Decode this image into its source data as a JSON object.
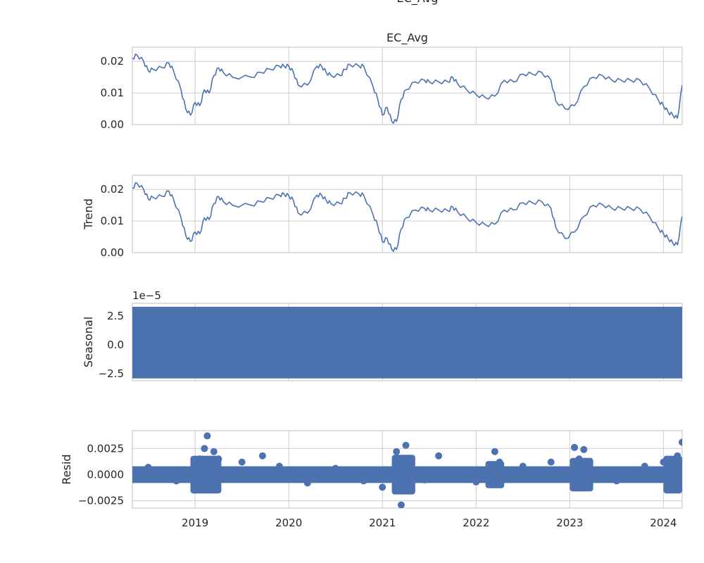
{
  "colors": {
    "series": "#4c72b0",
    "grid": "#cccccc",
    "text": "#262626"
  },
  "chart_data": [
    {
      "type": "line",
      "title": "EC_Avg",
      "suptitle": "EC_Avg",
      "ylabel": "",
      "xlim": [
        2018.33,
        2024.2
      ],
      "ylim": [
        0.0,
        0.0245
      ],
      "yticks": [
        0.0,
        0.01,
        0.02
      ],
      "ytick_labels": [
        "0.00",
        "0.01",
        "0.02"
      ],
      "x": [
        2018.33,
        2018.38,
        2018.45,
        2018.5,
        2018.55,
        2018.65,
        2018.72,
        2018.77,
        2018.85,
        2018.9,
        2018.95,
        2019.0,
        2019.05,
        2019.1,
        2019.15,
        2019.2,
        2019.25,
        2019.3,
        2019.4,
        2019.6,
        2019.7,
        2019.8,
        2019.9,
        2019.95,
        2020.0,
        2020.05,
        2020.1,
        2020.2,
        2020.3,
        2020.35,
        2020.4,
        2020.45,
        2020.55,
        2020.6,
        2020.65,
        2020.75,
        2020.8,
        2020.9,
        2020.95,
        2021.0,
        2021.05,
        2021.1,
        2021.15,
        2021.2,
        2021.25,
        2021.35,
        2021.45,
        2021.5,
        2021.6,
        2021.7,
        2021.75,
        2021.8,
        2021.9,
        2022.0,
        2022.1,
        2022.2,
        2022.3,
        2022.4,
        2022.5,
        2022.6,
        2022.7,
        2022.8,
        2022.85,
        2022.95,
        2023.05,
        2023.15,
        2023.25,
        2023.35,
        2023.45,
        2023.55,
        2023.65,
        2023.75,
        2023.85,
        2023.95,
        2024.0,
        2024.05,
        2024.1,
        2024.15,
        2024.2
      ],
      "y": [
        0.021,
        0.022,
        0.02,
        0.017,
        0.0175,
        0.018,
        0.0195,
        0.017,
        0.011,
        0.005,
        0.003,
        0.007,
        0.006,
        0.011,
        0.01,
        0.0155,
        0.018,
        0.0165,
        0.015,
        0.015,
        0.0165,
        0.0175,
        0.0185,
        0.0185,
        0.0185,
        0.0165,
        0.0125,
        0.0125,
        0.0185,
        0.0185,
        0.0165,
        0.0155,
        0.0155,
        0.0175,
        0.019,
        0.0185,
        0.0185,
        0.012,
        0.008,
        0.003,
        0.0055,
        0.001,
        0.001,
        0.008,
        0.011,
        0.0135,
        0.014,
        0.0135,
        0.0135,
        0.0135,
        0.015,
        0.013,
        0.011,
        0.0095,
        0.0085,
        0.009,
        0.014,
        0.0135,
        0.016,
        0.016,
        0.0165,
        0.014,
        0.0075,
        0.005,
        0.006,
        0.012,
        0.015,
        0.0155,
        0.014,
        0.014,
        0.014,
        0.014,
        0.0115,
        0.0075,
        0.006,
        0.004,
        0.003,
        0.002,
        0.0125
      ]
    },
    {
      "type": "line",
      "title": "",
      "ylabel": "Trend",
      "xlim": [
        2018.33,
        2024.2
      ],
      "ylim": [
        0.0,
        0.0245
      ],
      "yticks": [
        0.0,
        0.01,
        0.02
      ],
      "ytick_labels": [
        "0.00",
        "0.01",
        "0.02"
      ],
      "x": [
        2018.33,
        2018.38,
        2018.45,
        2018.5,
        2018.55,
        2018.65,
        2018.72,
        2018.77,
        2018.85,
        2018.9,
        2018.95,
        2019.0,
        2019.05,
        2019.1,
        2019.15,
        2019.2,
        2019.25,
        2019.3,
        2019.4,
        2019.6,
        2019.7,
        2019.8,
        2019.9,
        2019.95,
        2020.0,
        2020.05,
        2020.1,
        2020.2,
        2020.3,
        2020.35,
        2020.4,
        2020.45,
        2020.55,
        2020.6,
        2020.65,
        2020.75,
        2020.8,
        2020.9,
        2020.95,
        2021.0,
        2021.05,
        2021.1,
        2021.15,
        2021.2,
        2021.25,
        2021.35,
        2021.45,
        2021.5,
        2021.6,
        2021.7,
        2021.75,
        2021.8,
        2021.9,
        2022.0,
        2022.1,
        2022.2,
        2022.3,
        2022.4,
        2022.5,
        2022.6,
        2022.7,
        2022.8,
        2022.85,
        2022.95,
        2023.05,
        2023.15,
        2023.25,
        2023.35,
        2023.45,
        2023.55,
        2023.65,
        2023.75,
        2023.85,
        2023.95,
        2024.0,
        2024.05,
        2024.1,
        2024.15,
        2024.2
      ],
      "y": [
        0.0205,
        0.022,
        0.02,
        0.017,
        0.0175,
        0.0178,
        0.0195,
        0.0168,
        0.011,
        0.0055,
        0.0035,
        0.0065,
        0.006,
        0.011,
        0.0105,
        0.0155,
        0.0178,
        0.0162,
        0.015,
        0.015,
        0.0162,
        0.0172,
        0.0182,
        0.0185,
        0.018,
        0.0165,
        0.0125,
        0.0125,
        0.0182,
        0.0182,
        0.0165,
        0.0155,
        0.0155,
        0.0172,
        0.019,
        0.0185,
        0.0182,
        0.012,
        0.0085,
        0.0035,
        0.0045,
        0.001,
        0.001,
        0.0075,
        0.011,
        0.0135,
        0.014,
        0.0135,
        0.0135,
        0.0132,
        0.0145,
        0.013,
        0.011,
        0.0095,
        0.0088,
        0.009,
        0.0135,
        0.0135,
        0.0158,
        0.0158,
        0.0162,
        0.014,
        0.008,
        0.0045,
        0.0065,
        0.0115,
        0.015,
        0.0152,
        0.014,
        0.014,
        0.014,
        0.0138,
        0.0115,
        0.0075,
        0.006,
        0.0045,
        0.003,
        0.0025,
        0.0115
      ]
    },
    {
      "type": "area",
      "title": "",
      "ylabel": "Seasonal",
      "offset_label": "1e−5",
      "xlim": [
        2018.33,
        2024.2
      ],
      "ylim": [
        -3.1,
        3.6
      ],
      "yticks": [
        -2.5,
        0.0,
        2.5
      ],
      "ytick_labels": [
        "−2.5",
        "0.0",
        "2.5"
      ],
      "band": [
        -2.9,
        3.3
      ]
    },
    {
      "type": "scatter",
      "title": "",
      "ylabel": "Resid",
      "xlim": [
        2018.33,
        2024.2
      ],
      "ylim": [
        -0.0032,
        0.0042
      ],
      "yticks": [
        -0.0025,
        0.0,
        0.0025
      ],
      "ytick_labels": [
        "−0.0025",
        "0.0000",
        "0.0025"
      ],
      "x": [
        2018.5,
        2018.8,
        2019.0,
        2019.05,
        2019.1,
        2019.13,
        2019.2,
        2019.25,
        2019.5,
        2019.72,
        2019.9,
        2020.2,
        2020.5,
        2020.8,
        2021.0,
        2021.15,
        2021.2,
        2021.25,
        2021.3,
        2021.45,
        2021.6,
        2022.0,
        2022.2,
        2022.25,
        2022.5,
        2022.8,
        2023.05,
        2023.1,
        2023.15,
        2023.5,
        2023.8,
        2024.0,
        2024.15,
        2024.2
      ],
      "y": [
        0.0007,
        -0.0006,
        0.001,
        0.0015,
        0.0025,
        0.0037,
        0.0022,
        0.0015,
        0.0012,
        0.0018,
        0.0008,
        -0.0008,
        0.0006,
        -0.0006,
        -0.0012,
        0.0022,
        -0.0029,
        0.0028,
        0.0012,
        -0.0005,
        0.0018,
        -0.0007,
        0.0022,
        0.0012,
        0.0008,
        0.0012,
        0.0026,
        0.0015,
        0.0024,
        -0.0006,
        0.0008,
        0.0012,
        0.0018,
        0.0031
      ]
    }
  ],
  "xaxis": {
    "ticks": [
      2019,
      2020,
      2021,
      2022,
      2023,
      2024
    ],
    "labels": [
      "2019",
      "2020",
      "2021",
      "2022",
      "2023",
      "2024"
    ]
  }
}
